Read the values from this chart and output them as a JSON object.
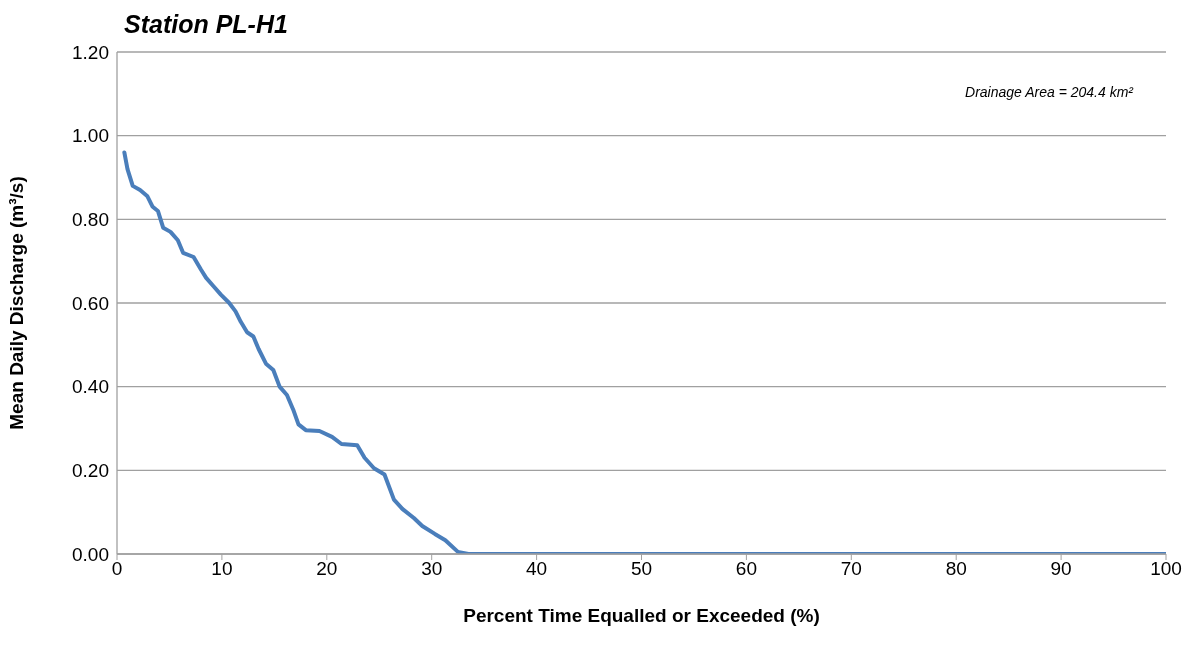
{
  "chart_data": {
    "type": "line",
    "title": "Station PL-H1",
    "xlabel": "Percent Time Equalled or Exceeded (%)",
    "ylabel": "Mean Daily Discharge (m³/s)",
    "annotations": [
      "Drainage Area = 204.4 km²"
    ],
    "xlim": [
      0,
      100
    ],
    "xticks": [
      0,
      10,
      20,
      30,
      40,
      50,
      60,
      70,
      80,
      90,
      100
    ],
    "ylim": [
      0,
      1.2
    ],
    "yticks": [
      {
        "value": 0,
        "label": "0.00"
      },
      {
        "value": 0.2,
        "label": "0.20"
      },
      {
        "value": 0.4,
        "label": "0.40"
      },
      {
        "value": 0.6,
        "label": "0.60"
      },
      {
        "value": 0.8,
        "label": "0.80"
      },
      {
        "value": 1,
        "label": "1.00"
      },
      {
        "value": 1.2,
        "label": "1.20"
      }
    ],
    "grid": "y",
    "marker": "none",
    "series": [
      {
        "color": "#4a7ebb",
        "x": [
          0.7,
          1.0,
          1.5,
          2.2,
          2.9,
          3.4,
          3.9,
          4.4,
          5.1,
          5.8,
          6.3,
          7.3,
          8.0,
          8.5,
          9.2,
          9.9,
          10.7,
          11.3,
          11.8,
          12.4,
          13.0,
          13.5,
          14.2,
          14.9,
          15.5,
          16.2,
          16.8,
          17.3,
          18.0,
          19.3,
          20.5,
          21.4,
          22.9,
          23.6,
          24.5,
          25.5,
          26.4,
          27.2,
          28.3,
          29.1,
          30.3,
          31.3,
          32.5,
          33.5,
          100
        ],
        "values": [
          0.96,
          0.92,
          0.88,
          0.87,
          0.855,
          0.83,
          0.82,
          0.78,
          0.77,
          0.75,
          0.72,
          0.71,
          0.68,
          0.66,
          0.64,
          0.62,
          0.6,
          0.58,
          0.555,
          0.53,
          0.52,
          0.49,
          0.455,
          0.44,
          0.4,
          0.38,
          0.345,
          0.31,
          0.296,
          0.294,
          0.28,
          0.263,
          0.26,
          0.23,
          0.205,
          0.19,
          0.13,
          0.108,
          0.086,
          0.067,
          0.048,
          0.033,
          0.005,
          0,
          0
        ]
      }
    ]
  }
}
